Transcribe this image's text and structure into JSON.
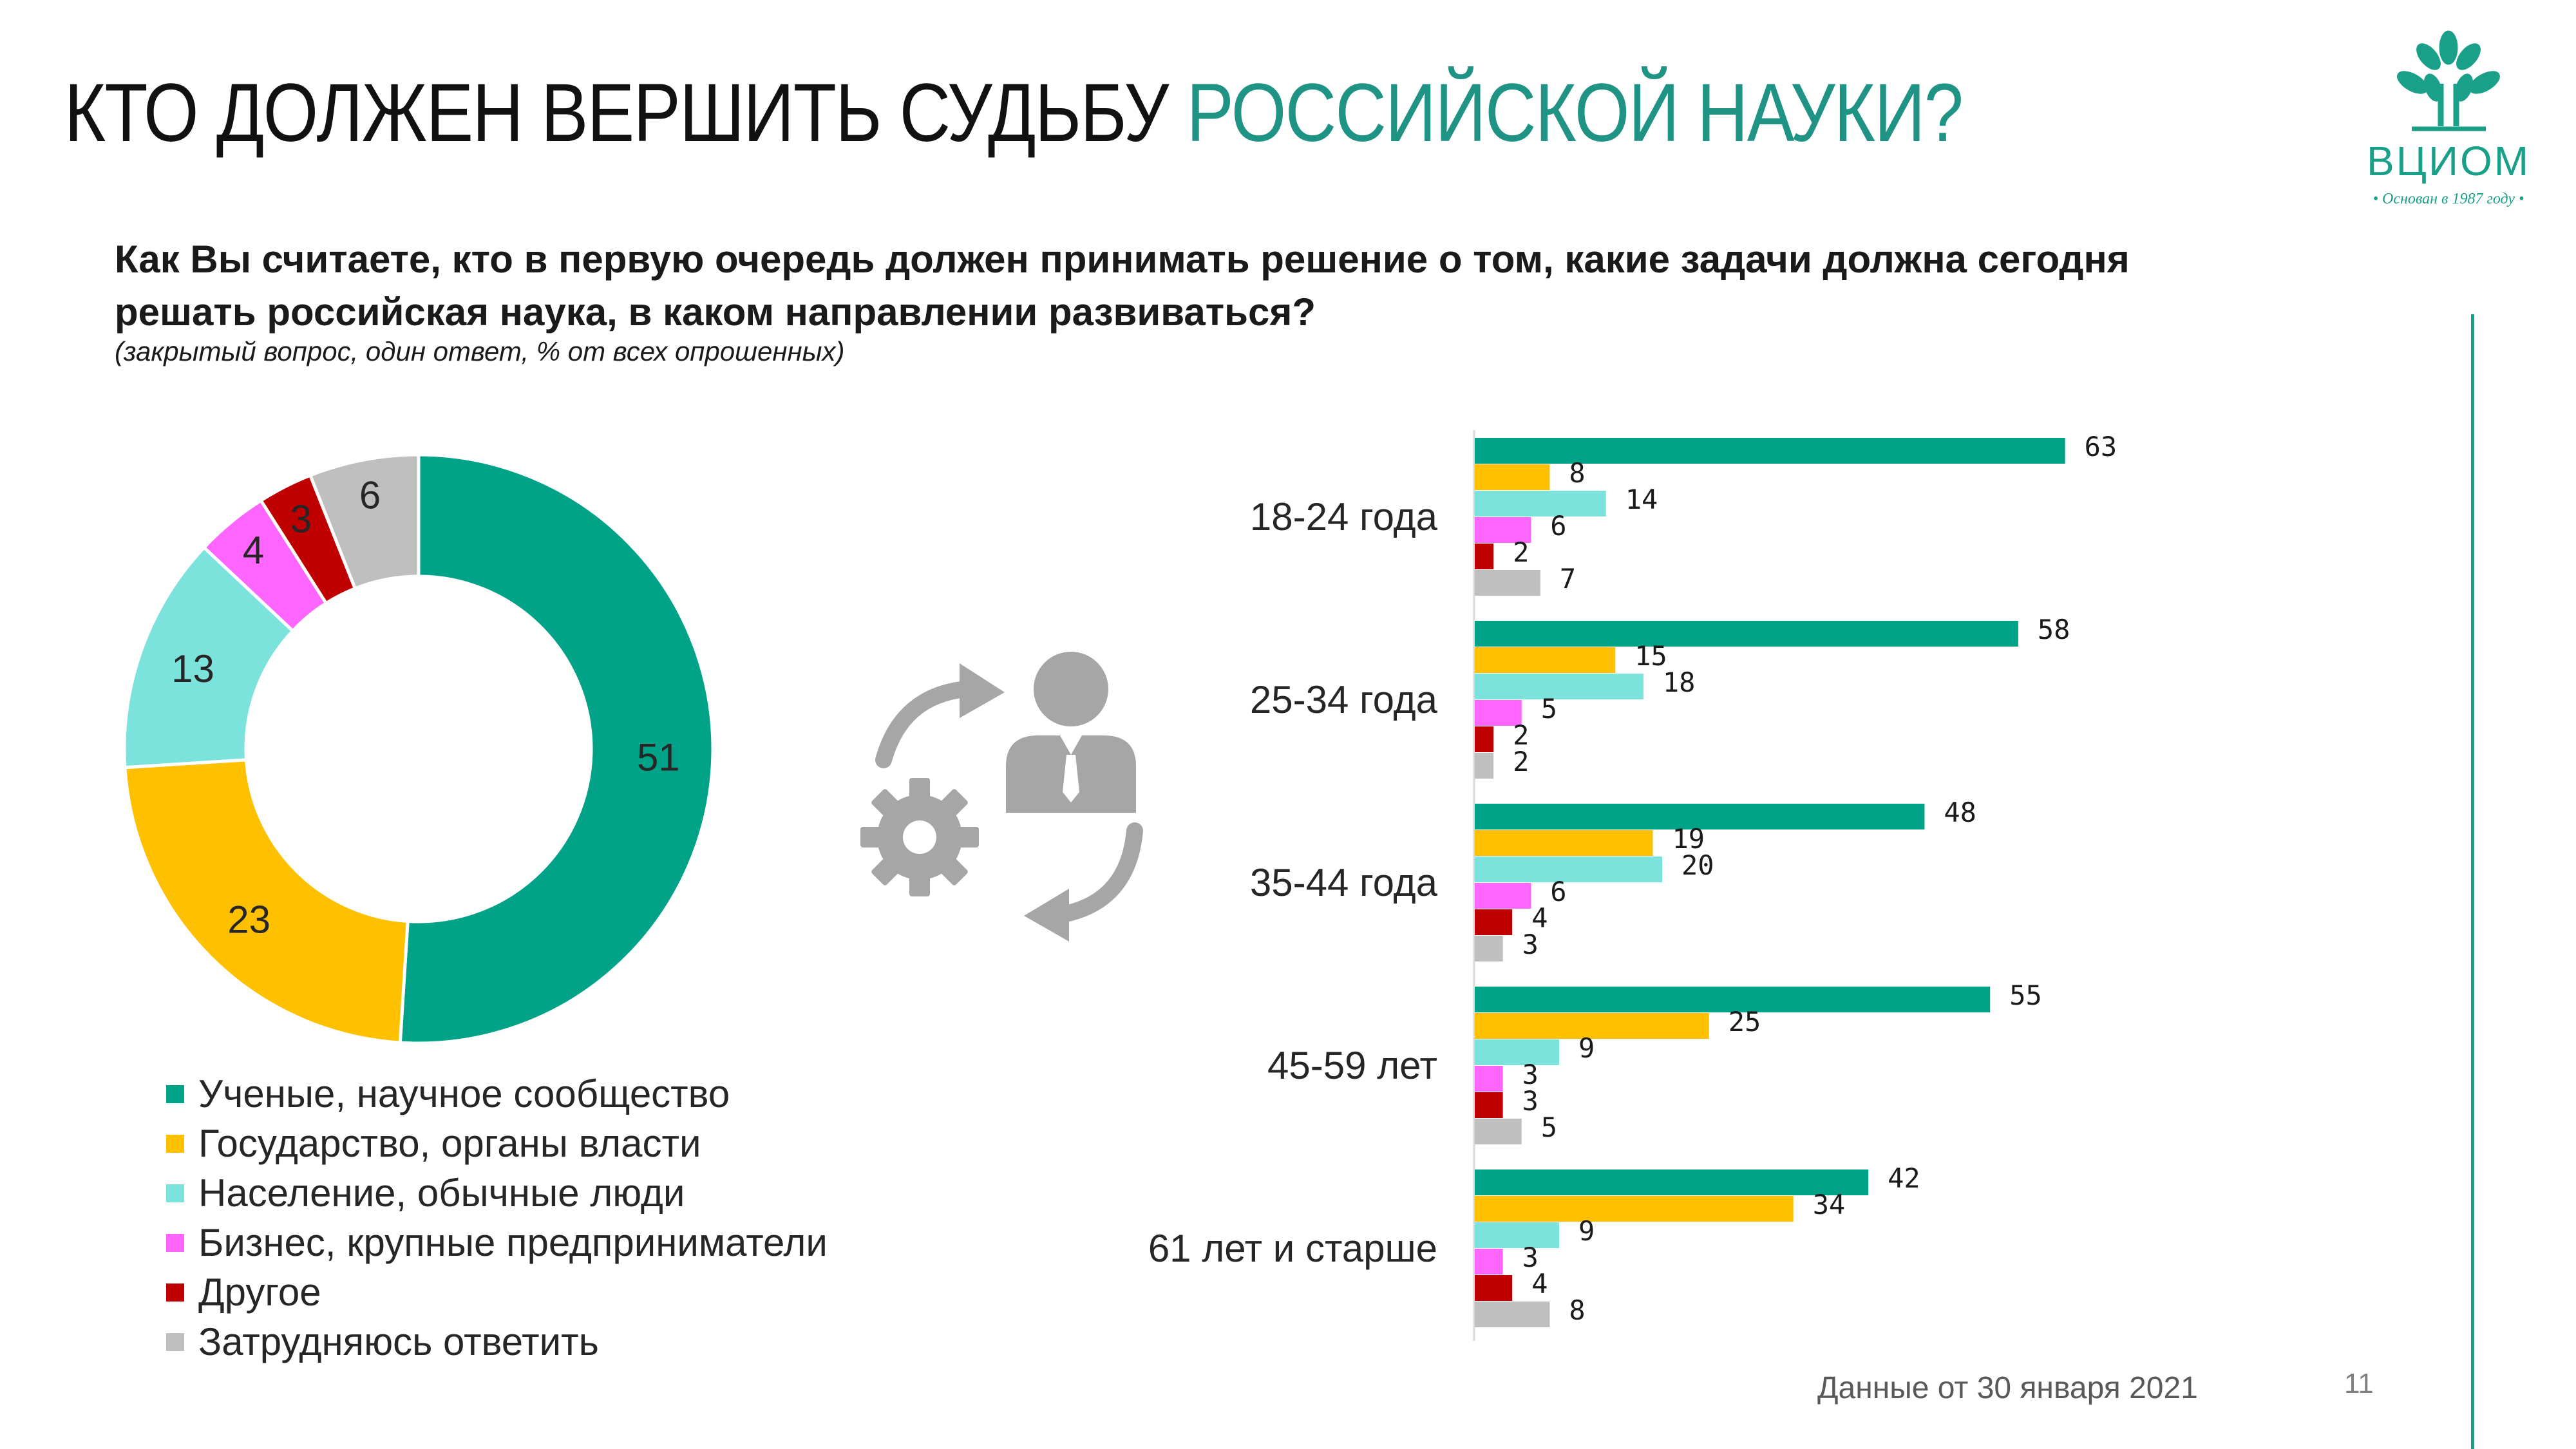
{
  "title": {
    "part1": "КТО ДОЛЖЕН ВЕРШИТЬ СУДЬБУ",
    "part2": "РОССИЙСКОЙ НАУКИ?"
  },
  "question": " Как Вы считаете, кто в первую очередь должен принимать решение о том, какие задачи должна сегодня решать российская наука, в каком направлении развиваться?",
  "note": "(закрытый вопрос, один ответ, % от всех опрошенных)",
  "logo": {
    "name": "ВЦИОМ",
    "tagline": "• Основан в 1987 году •",
    "color": "#1aa088"
  },
  "footer": {
    "date": "Данные от 30 января 2021",
    "page": "11"
  },
  "icons": [
    "gear-arrows-icon",
    "businessman-icon"
  ],
  "colors": {
    "accent": "#1f9384",
    "series": [
      "#00a387",
      "#ffc000",
      "#7ce3dc",
      "#ff66ff",
      "#c00000",
      "#bfbfbf"
    ]
  },
  "chart_data": [
    {
      "type": "pie",
      "variant": "donut",
      "categories": [
        "Ученые, научное сообщество",
        "Государство, органы власти",
        "Население, обычные люди",
        "Бизнес, крупные предприниматели",
        "Другое",
        "Затрудняюсь ответить"
      ],
      "values": [
        51,
        23,
        13,
        4,
        3,
        6
      ],
      "legend": "bottom"
    },
    {
      "type": "bar",
      "orientation": "horizontal",
      "categories": [
        "18-24 года",
        "25-34 года",
        "35-44 года",
        "45-59 лет",
        "61 лет и старше"
      ],
      "series": [
        {
          "name": "Ученые, научное сообщество",
          "values": [
            63,
            58,
            48,
            55,
            42
          ]
        },
        {
          "name": "Государство, органы власти",
          "values": [
            8,
            15,
            19,
            25,
            34
          ]
        },
        {
          "name": "Население, обычные люди",
          "values": [
            14,
            18,
            20,
            9,
            9
          ]
        },
        {
          "name": "Бизнес, крупные предприниматели",
          "values": [
            6,
            5,
            6,
            3,
            3
          ]
        },
        {
          "name": "Другое",
          "values": [
            2,
            2,
            4,
            3,
            4
          ]
        },
        {
          "name": "Затрудняюсь ответить",
          "values": [
            7,
            2,
            3,
            5,
            8
          ]
        }
      ],
      "xlim": [
        0,
        70
      ],
      "grid": false
    }
  ]
}
